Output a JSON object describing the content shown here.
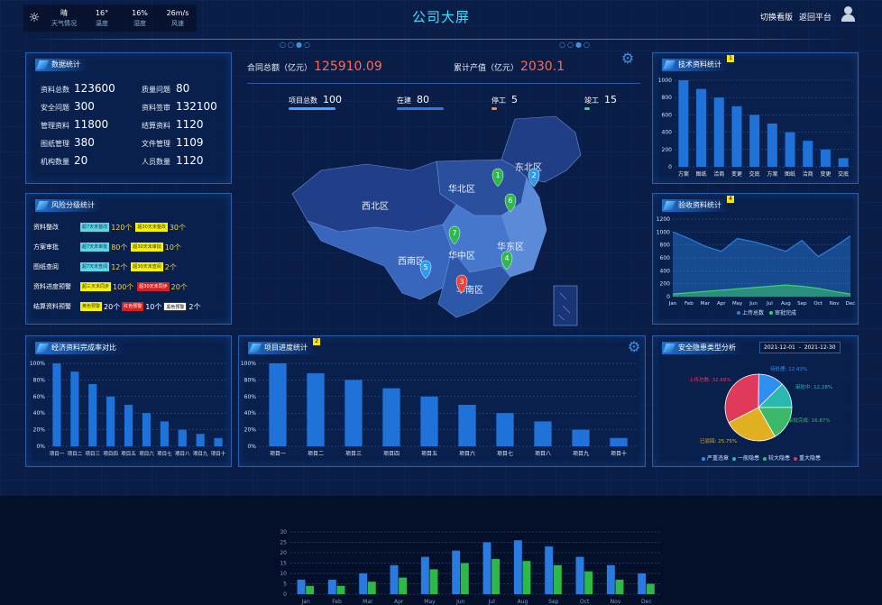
{
  "header": {
    "title": "公司大屏",
    "nav": [
      "切换看版",
      "返回平台"
    ],
    "weather": [
      {
        "value": "晴",
        "label": "天气情况"
      },
      {
        "value": "16°",
        "label": "温度"
      },
      {
        "value": "16%",
        "label": "湿度"
      },
      {
        "value": "26m/s",
        "label": "风速"
      }
    ]
  },
  "data_stats": {
    "title": "数据统计",
    "items": [
      {
        "label": "资料总数",
        "value": "123600"
      },
      {
        "label": "质量问题",
        "value": "80"
      },
      {
        "label": "安全问题",
        "value": "300"
      },
      {
        "label": "资料签审",
        "value": "132100"
      },
      {
        "label": "管理资料",
        "value": "11800"
      },
      {
        "label": "结算资料",
        "value": "1120"
      },
      {
        "label": "图纸管理",
        "value": "380"
      },
      {
        "label": "文件管理",
        "value": "1109"
      },
      {
        "label": "机构数量",
        "value": "20"
      },
      {
        "label": "人员数量",
        "value": "1120"
      }
    ]
  },
  "risk": {
    "title": "风险分级统计",
    "rows": [
      {
        "label": "资料整改",
        "cells": [
          {
            "tag": "超7天未整改",
            "style": "tc",
            "count": "120个"
          },
          {
            "tag": "超30天未整改",
            "style": "ty",
            "count": "30个"
          }
        ]
      },
      {
        "label": "方案审批",
        "cells": [
          {
            "tag": "超7天未审批",
            "style": "tc",
            "count": "80个"
          },
          {
            "tag": "超30天未审批",
            "style": "ty",
            "count": "10个"
          }
        ]
      },
      {
        "label": "图纸查阅",
        "cells": [
          {
            "tag": "超7天未查阅",
            "style": "tc",
            "count": "12个"
          },
          {
            "tag": "超30天未查阅",
            "style": "ty",
            "count": "2个"
          }
        ]
      },
      {
        "label": "资料进度预警",
        "cells": [
          {
            "tag": "超三天未同步",
            "style": "ty",
            "count": "100个"
          },
          {
            "tag": "超30天未同步",
            "style": "tr",
            "count": "20个"
          }
        ]
      },
      {
        "label": "结算资料预警",
        "cells": [
          {
            "tag": "黄色预警",
            "style": "ty",
            "count": "20个"
          },
          {
            "tag": "红色预警",
            "style": "tr",
            "count": "10个"
          },
          {
            "tag": "黑色预警",
            "style": "tw",
            "count": "2个"
          }
        ]
      }
    ]
  },
  "center": {
    "contract_label": "合同总额（亿元）",
    "contract_value": "125910.09",
    "output_label": "累计产值（亿元）",
    "output_value": "2030.1",
    "subs": [
      {
        "label": "项目总数",
        "value": "100",
        "color": "#4aa3ff"
      },
      {
        "label": "在建",
        "value": "80",
        "color": "#2a7be0"
      },
      {
        "label": "停工",
        "value": "5",
        "color": "#ff8a3d"
      },
      {
        "label": "竣工",
        "value": "15",
        "color": "#3fd0a0"
      }
    ],
    "regions": [
      "东北区",
      "华北区",
      "西北区",
      "华东区",
      "西南区",
      "华中区",
      "华南区"
    ],
    "pins": [
      {
        "n": "1",
        "color": "#2fb84a"
      },
      {
        "n": "2",
        "color": "#2d9bf0"
      },
      {
        "n": "3",
        "color": "#e8463c"
      },
      {
        "n": "4",
        "color": "#2fb84a"
      },
      {
        "n": "5",
        "color": "#2d9bf0"
      },
      {
        "n": "6",
        "color": "#2fb84a"
      },
      {
        "n": "7",
        "color": "#2fb84a"
      }
    ]
  },
  "tech_docs": {
    "title": "技术资料统计",
    "badge": "1",
    "chart_data": {
      "type": "bar",
      "categories": [
        "方案",
        "图纸",
        "洽商",
        "变更",
        "交底",
        "方案",
        "图纸",
        "洽商",
        "变更",
        "交底"
      ],
      "values": [
        1000,
        900,
        800,
        700,
        600,
        500,
        400,
        300,
        200,
        100
      ],
      "ylim": [
        0,
        1000
      ],
      "yticks": [
        "1000",
        "800",
        "600",
        "400",
        "200",
        "0"
      ]
    }
  },
  "acceptance": {
    "title": "验收资料统计",
    "badge": "4",
    "chart_data": {
      "type": "area",
      "categories": [
        "Jan",
        "Feb",
        "Mar",
        "Apr",
        "May",
        "Jun",
        "Jul",
        "Aug",
        "Sep",
        "Oct",
        "Nov",
        "Dec"
      ],
      "series": [
        {
          "name": "上传总数",
          "values": [
            1000,
            900,
            780,
            700,
            900,
            850,
            780,
            700,
            870,
            620,
            770,
            940
          ],
          "color": "#2d7fe0"
        },
        {
          "name": "审批完成",
          "values": [
            40,
            60,
            80,
            100,
            120,
            140,
            160,
            180,
            160,
            130,
            80,
            40
          ],
          "color": "#3bd16f"
        }
      ],
      "ylim": [
        0,
        1200
      ],
      "yticks": [
        "1200",
        "1000",
        "800",
        "600",
        "400",
        "200",
        "0"
      ]
    }
  },
  "econ": {
    "title": "经济资料完成率对比",
    "chart_data": {
      "type": "bar",
      "categories": [
        "项目一",
        "项目二",
        "项目三",
        "项目四",
        "项目五",
        "项目六",
        "项目七",
        "项目八",
        "项目九",
        "项目十"
      ],
      "values": [
        100,
        90,
        75,
        60,
        50,
        40,
        30,
        20,
        15,
        10
      ],
      "ylim": [
        0,
        100
      ],
      "yticks": [
        "100%",
        "80%",
        "60%",
        "40%",
        "20%",
        "0%"
      ]
    }
  },
  "progress": {
    "title": "项目进度统计",
    "badge": "2",
    "chart_data": {
      "type": "bar",
      "categories": [
        "项目一",
        "项目二",
        "项目三",
        "项目四",
        "项目五",
        "项目六",
        "项目七",
        "项目八",
        "项目九",
        "项目十"
      ],
      "values": [
        100,
        88,
        80,
        70,
        60,
        50,
        40,
        30,
        20,
        10
      ],
      "ylim": [
        0,
        100
      ],
      "yticks": [
        "100%",
        "80%",
        "60%",
        "40%",
        "20%",
        "0%"
      ]
    }
  },
  "safety": {
    "title": "安全隐患类型分析",
    "date_from": "2021-12-01",
    "date_sep": "-",
    "date_to": "2021-12-30",
    "chart_data": {
      "type": "pie",
      "slices": [
        {
          "name": "上传总数",
          "value": 32.68,
          "label": "上传总数: 32.68%",
          "color": "#e03a5a"
        },
        {
          "name": "待处理",
          "value": 12.43,
          "label": "待处理: 12.43%",
          "color": "#2d8ff0"
        },
        {
          "name": "审批中",
          "value": 12.28,
          "label": "审批中: 12.28%",
          "color": "#2ab7b0"
        },
        {
          "name": "审批完成",
          "value": 16.87,
          "label": "审批完成: 16.87%",
          "color": "#3bb86a"
        },
        {
          "name": "已驳回",
          "value": 25.75,
          "label": "已驳回: 25.75%",
          "color": "#e0b020"
        }
      ],
      "legend": [
        {
          "name": "严重违章",
          "color": "#2d8ff0"
        },
        {
          "name": "一般隐患",
          "color": "#2ab7b0"
        },
        {
          "name": "较大隐患",
          "color": "#3bb86a"
        },
        {
          "name": "重大隐患",
          "color": "#e03a5a"
        }
      ]
    }
  },
  "bottom": {
    "chart_data": {
      "type": "bar",
      "categories": [
        "Jan",
        "Feb",
        "Mar",
        "Apr",
        "May",
        "Jun",
        "Jul",
        "Aug",
        "Sep",
        "Oct",
        "Nov",
        "Dec"
      ],
      "series": [
        {
          "values": [
            7,
            7,
            10,
            14,
            18,
            21,
            25,
            26,
            23,
            18,
            14,
            10
          ],
          "color": "#2a7be0"
        },
        {
          "values": [
            4,
            4,
            6,
            8,
            12,
            15,
            17,
            16,
            14,
            11,
            7,
            5
          ],
          "color": "#2fb84a"
        }
      ],
      "ylim": [
        0,
        30
      ],
      "yticks": [
        "30",
        "25",
        "20",
        "15",
        "10",
        "5",
        "0"
      ]
    }
  }
}
